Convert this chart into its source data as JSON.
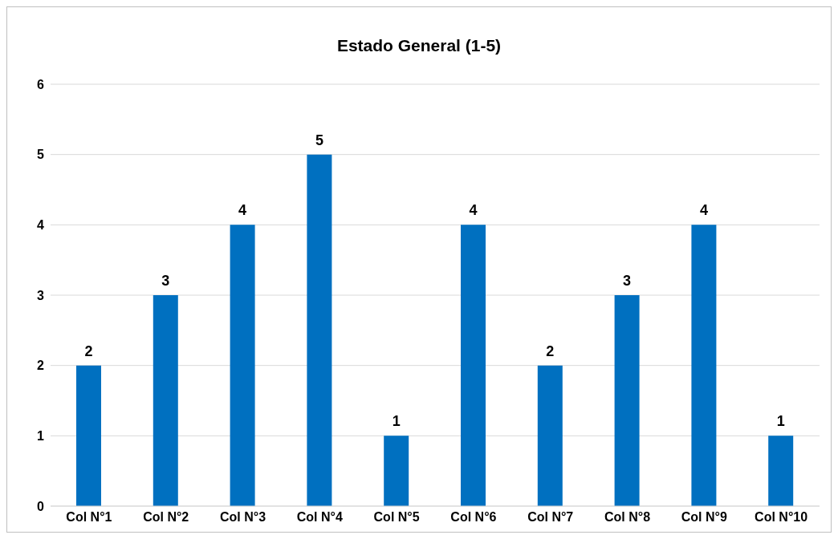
{
  "chart_data": {
    "type": "bar",
    "title": "Estado General (1-5)",
    "categories": [
      "Col N°1",
      "Col N°2",
      "Col N°3",
      "Col N°4",
      "Col N°5",
      "Col N°6",
      "Col N°7",
      "Col N°8",
      "Col N°9",
      "Col N°10"
    ],
    "values": [
      2,
      3,
      4,
      5,
      1,
      4,
      2,
      3,
      4,
      1
    ],
    "color": "#0070c0",
    "ylim": [
      0,
      6
    ],
    "yticks": [
      0,
      1,
      2,
      3,
      4,
      5,
      6
    ],
    "grid": "y",
    "data_labels": true
  }
}
